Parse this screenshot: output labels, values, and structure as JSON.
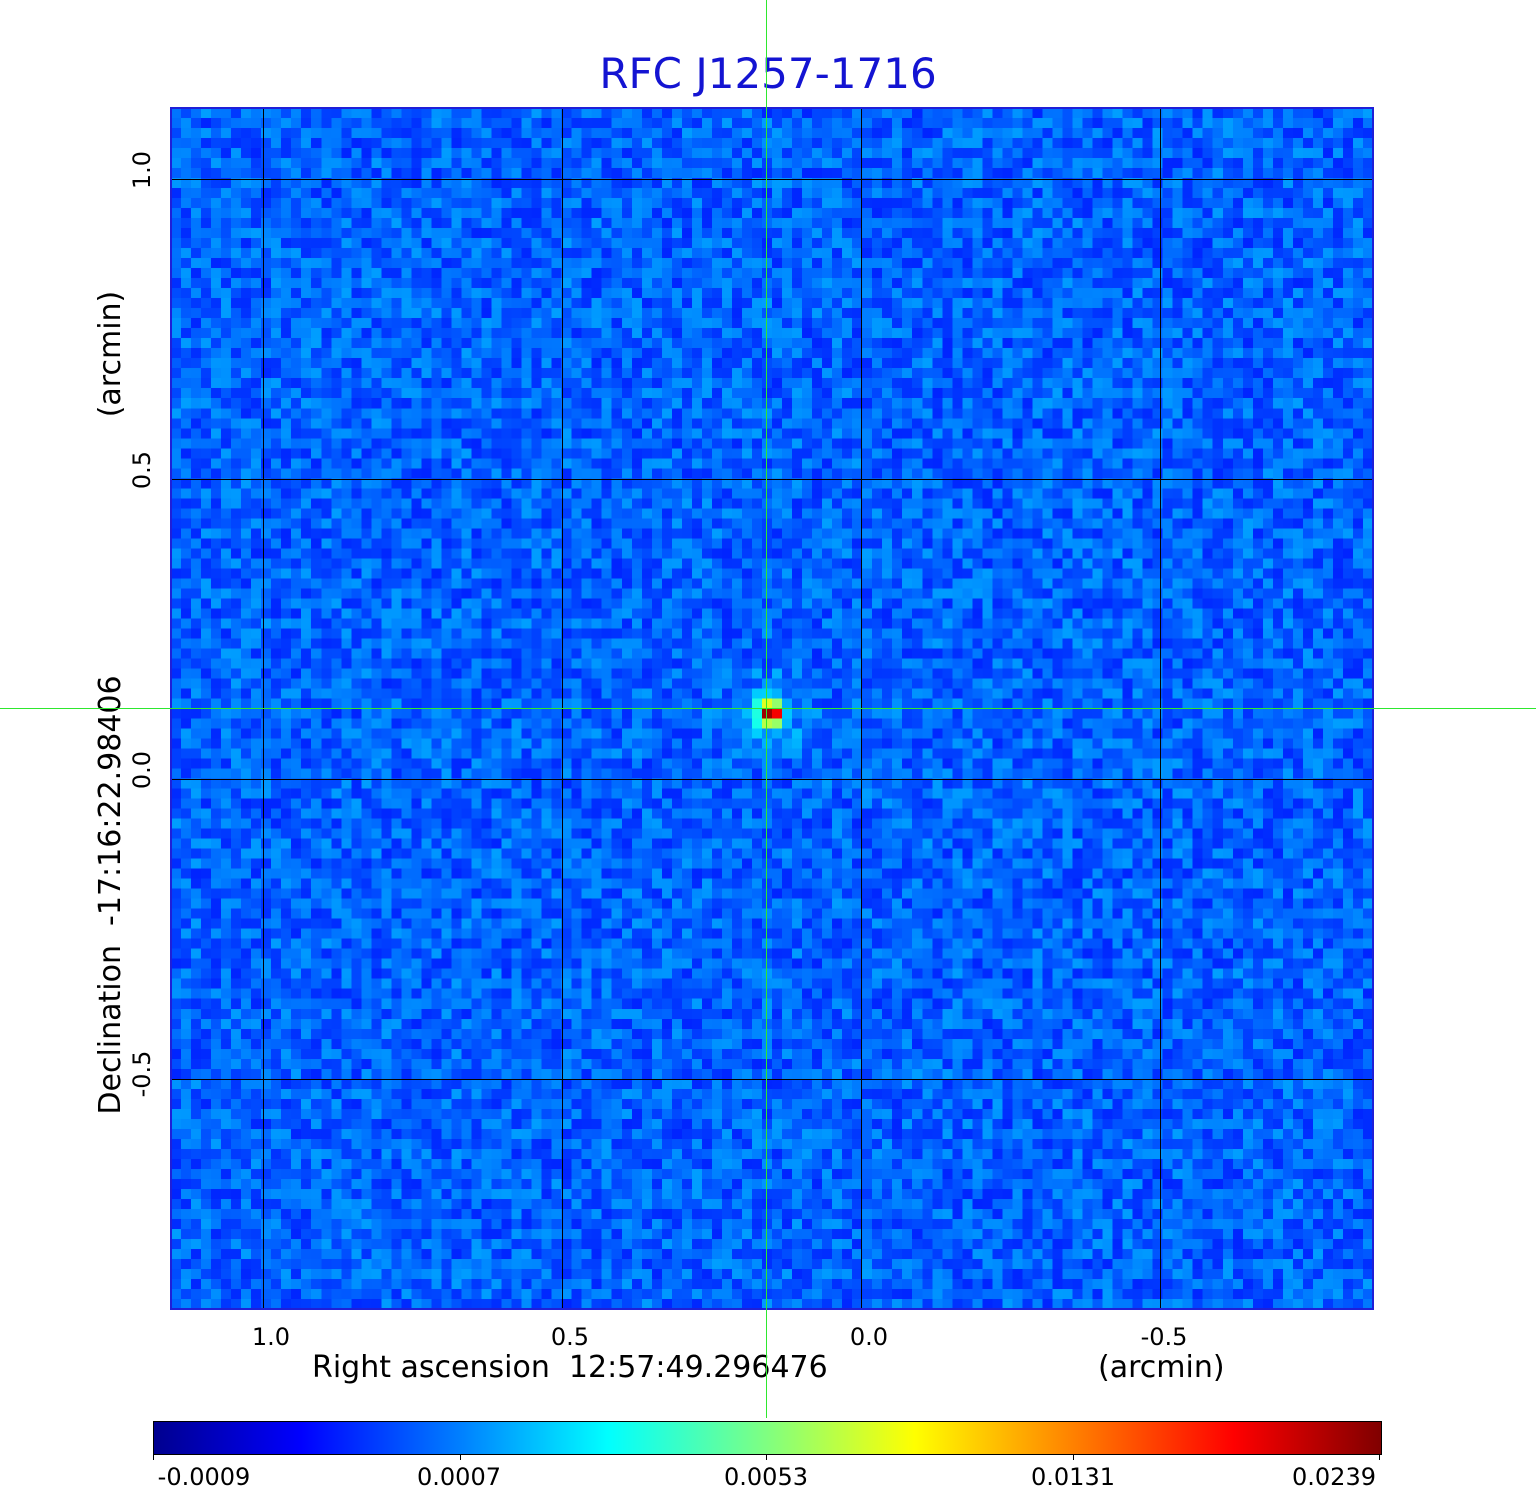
{
  "title": "RFC J1257-1716",
  "x_axis": {
    "label": "Right ascension  12:57:49.296476",
    "unit": "(arcmin)",
    "ticks": [
      "1.0",
      "0.5",
      "0.0",
      "-0.5"
    ]
  },
  "y_axis": {
    "label": "Declination  -17:16:22.98406",
    "unit": "(arcmin)",
    "ticks": [
      "1.0",
      "0.5",
      "0.0",
      "-0.5"
    ]
  },
  "colorbar": {
    "labels": [
      "-0.0009",
      "0.0007",
      "0.0053",
      "0.0131",
      "0.0239"
    ],
    "colormap": "jet"
  },
  "colors": {
    "title": "#1414d2",
    "frame": "#1f1fd8",
    "crosshair": "#2ee82e",
    "background_map": "#1f5fe8"
  },
  "source": {
    "peak_value": 0.0239,
    "ra_offset_arcmin": 0.16,
    "dec_offset_arcmin": 0.12
  }
}
